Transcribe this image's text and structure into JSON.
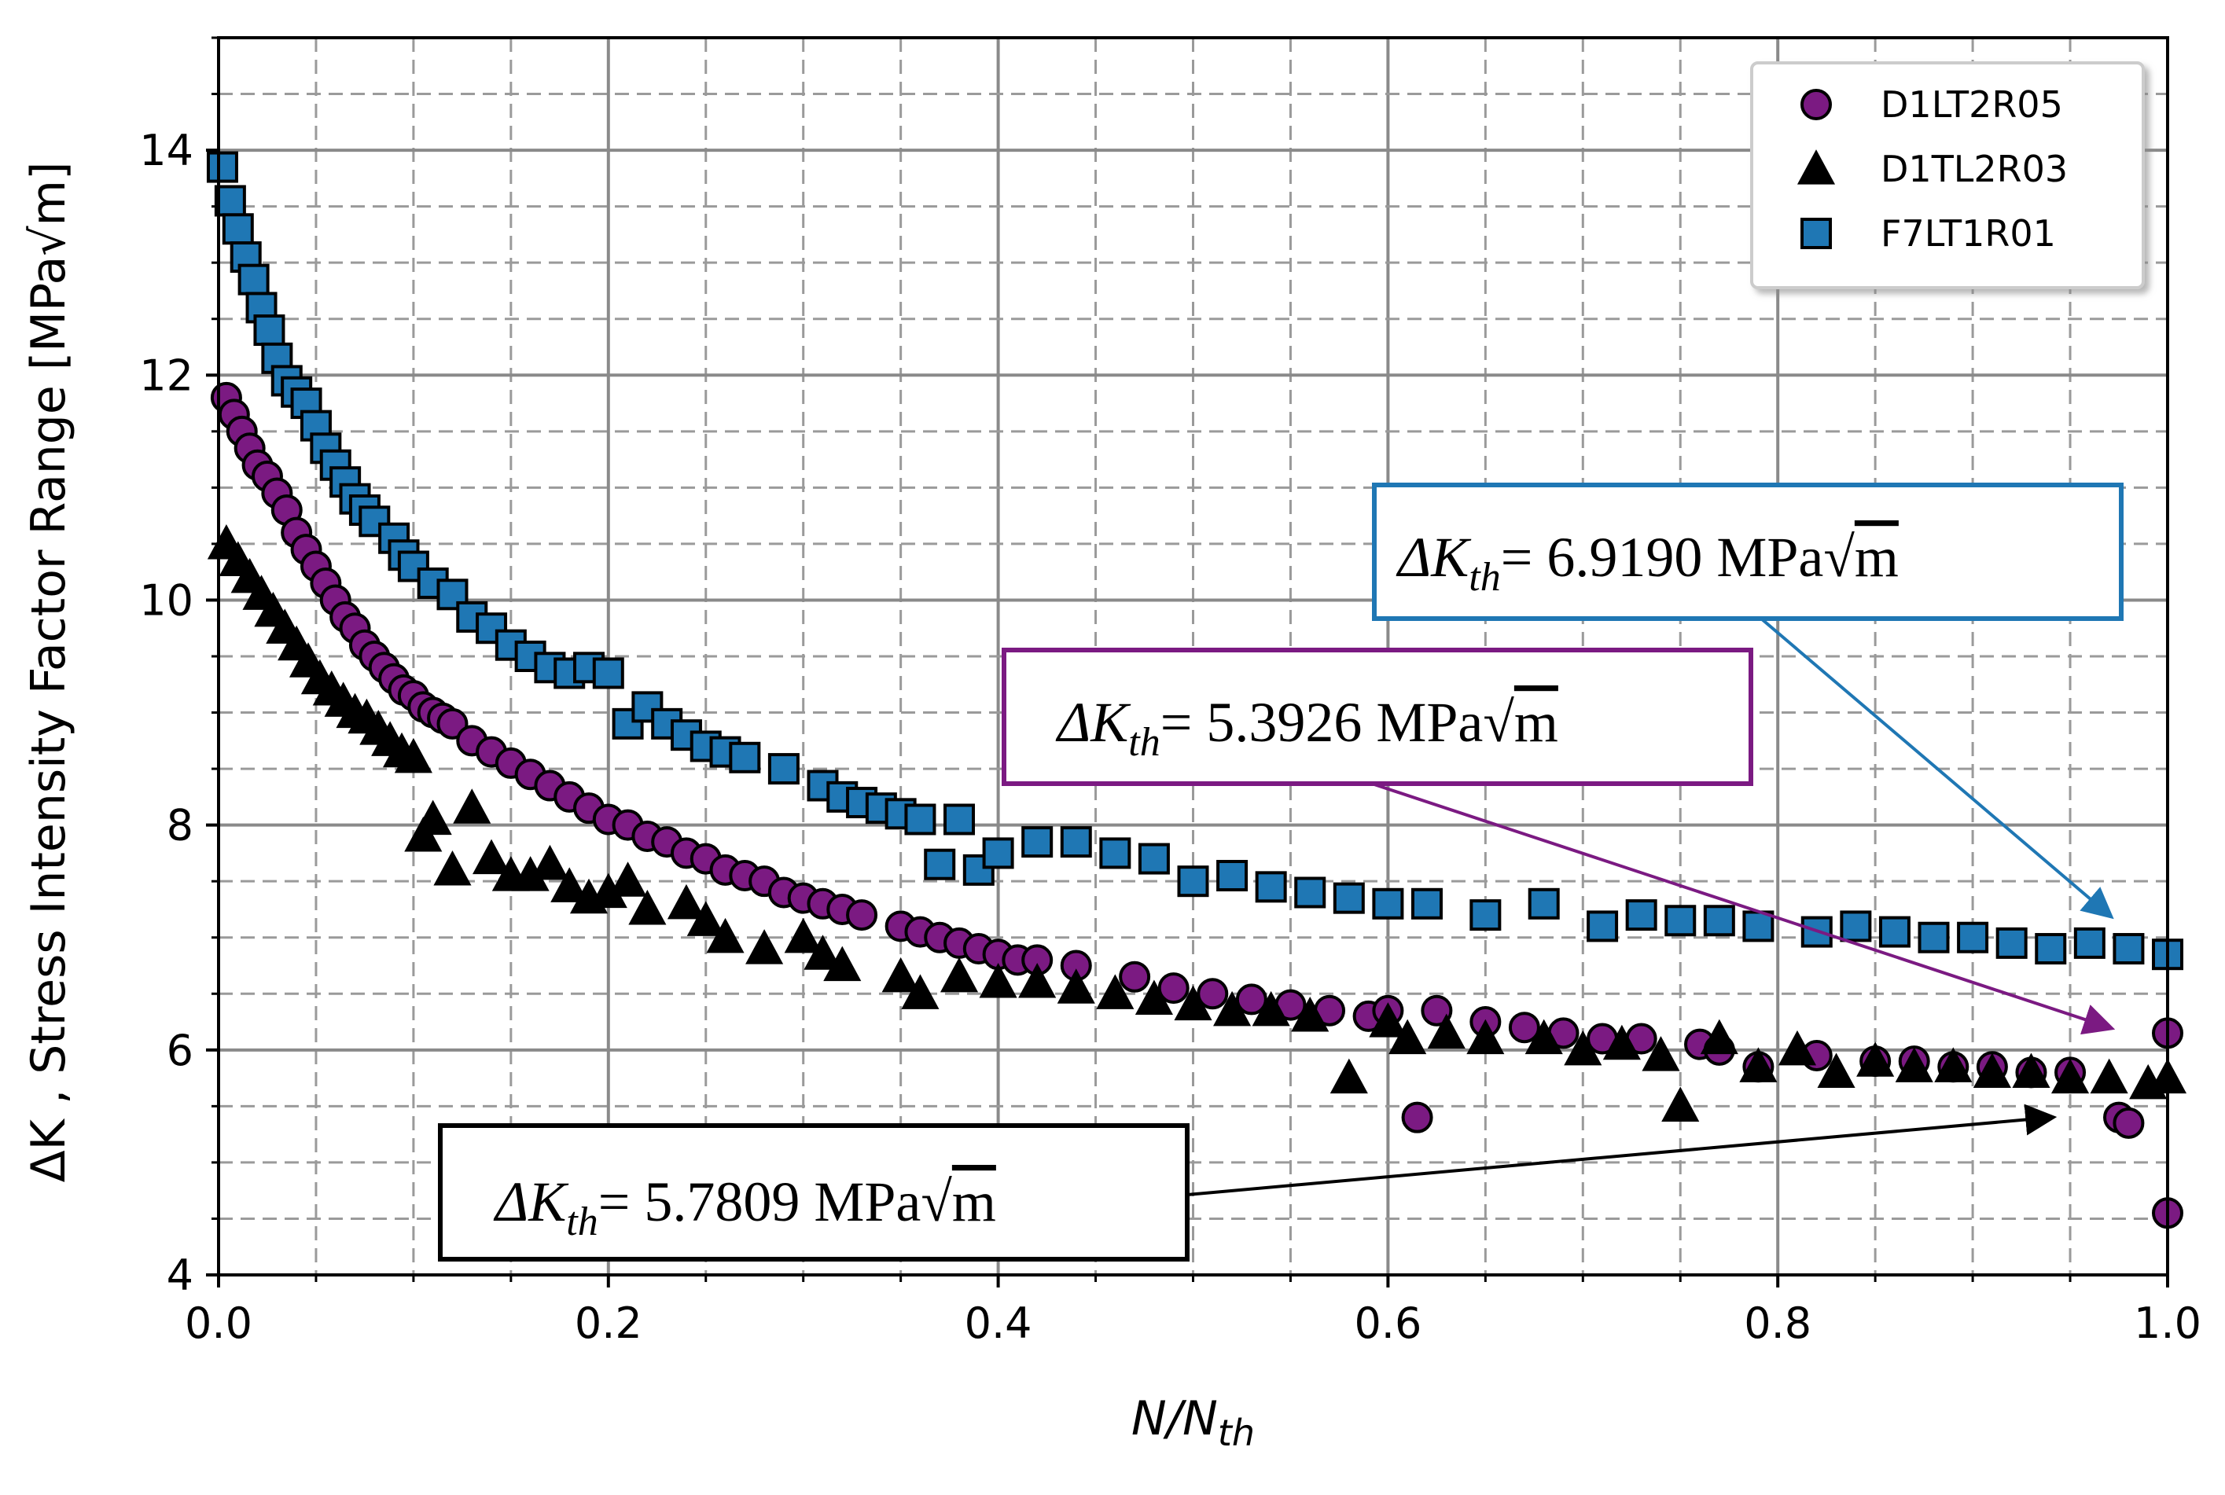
{
  "chart_data": {
    "type": "scatter",
    "title": "",
    "xlabel": "N/N",
    "xlabel_sub": "th",
    "ylabel": "ΔK , Stress Intensity Factor Range [MPa√m]",
    "xlim": [
      0.0,
      1.0
    ],
    "ylim": [
      4,
      15
    ],
    "x_ticks": [
      "0.0",
      "0.2",
      "0.4",
      "0.6",
      "0.8",
      "1.0"
    ],
    "y_ticks": [
      "4",
      "6",
      "8",
      "10",
      "12",
      "14"
    ],
    "grid": true,
    "legend_position": "top-right",
    "series": [
      {
        "name": "D1LT2R05",
        "marker": "circle",
        "color": "#7b1a82",
        "x": [
          0.004,
          0.008,
          0.012,
          0.016,
          0.02,
          0.025,
          0.03,
          0.035,
          0.04,
          0.045,
          0.05,
          0.055,
          0.06,
          0.065,
          0.07,
          0.075,
          0.08,
          0.085,
          0.09,
          0.095,
          0.1,
          0.105,
          0.11,
          0.115,
          0.12,
          0.13,
          0.14,
          0.15,
          0.16,
          0.17,
          0.18,
          0.19,
          0.2,
          0.21,
          0.22,
          0.23,
          0.24,
          0.25,
          0.26,
          0.27,
          0.28,
          0.29,
          0.3,
          0.31,
          0.32,
          0.33,
          0.35,
          0.36,
          0.37,
          0.38,
          0.39,
          0.4,
          0.41,
          0.42,
          0.44,
          0.47,
          0.49,
          0.51,
          0.53,
          0.55,
          0.57,
          0.59,
          0.6,
          0.615,
          0.625,
          0.65,
          0.67,
          0.69,
          0.71,
          0.73,
          0.76,
          0.77,
          0.79,
          0.82,
          0.85,
          0.87,
          0.89,
          0.91,
          0.93,
          0.95,
          0.975,
          0.98,
          1.0,
          1.0
        ],
        "y": [
          11.8,
          11.65,
          11.5,
          11.35,
          11.2,
          11.1,
          10.95,
          10.8,
          10.6,
          10.45,
          10.3,
          10.15,
          10.0,
          9.85,
          9.75,
          9.6,
          9.5,
          9.4,
          9.3,
          9.2,
          9.15,
          9.05,
          9.0,
          8.95,
          8.9,
          8.75,
          8.65,
          8.55,
          8.45,
          8.35,
          8.25,
          8.15,
          8.05,
          8.0,
          7.9,
          7.85,
          7.75,
          7.7,
          7.6,
          7.55,
          7.5,
          7.4,
          7.35,
          7.3,
          7.25,
          7.2,
          7.1,
          7.05,
          7.0,
          6.95,
          6.9,
          6.85,
          6.8,
          6.8,
          6.75,
          6.65,
          6.55,
          6.5,
          6.45,
          6.4,
          6.35,
          6.3,
          6.35,
          5.4,
          6.35,
          6.25,
          6.2,
          6.15,
          6.1,
          6.1,
          6.05,
          6.0,
          5.85,
          5.95,
          5.9,
          5.9,
          5.85,
          5.85,
          5.8,
          5.8,
          5.4,
          5.35,
          6.15,
          4.55
        ]
      },
      {
        "name": "D1TL2R03",
        "marker": "triangle",
        "color": "#000000",
        "x": [
          0.004,
          0.01,
          0.016,
          0.022,
          0.028,
          0.034,
          0.04,
          0.046,
          0.052,
          0.058,
          0.064,
          0.07,
          0.076,
          0.082,
          0.088,
          0.094,
          0.1,
          0.105,
          0.11,
          0.12,
          0.13,
          0.14,
          0.15,
          0.16,
          0.17,
          0.18,
          0.19,
          0.2,
          0.21,
          0.22,
          0.24,
          0.25,
          0.26,
          0.28,
          0.3,
          0.31,
          0.32,
          0.35,
          0.36,
          0.38,
          0.4,
          0.42,
          0.44,
          0.46,
          0.48,
          0.5,
          0.52,
          0.54,
          0.56,
          0.58,
          0.6,
          0.61,
          0.63,
          0.65,
          0.68,
          0.7,
          0.72,
          0.74,
          0.75,
          0.77,
          0.79,
          0.81,
          0.83,
          0.85,
          0.87,
          0.89,
          0.91,
          0.93,
          0.95,
          0.97,
          0.99,
          1.0
        ],
        "y": [
          10.5,
          10.35,
          10.2,
          10.05,
          9.9,
          9.75,
          9.6,
          9.45,
          9.3,
          9.2,
          9.1,
          9.0,
          8.95,
          8.85,
          8.75,
          8.65,
          8.6,
          7.9,
          8.05,
          7.6,
          8.15,
          7.7,
          7.55,
          7.55,
          7.65,
          7.45,
          7.35,
          7.4,
          7.5,
          7.25,
          7.3,
          7.15,
          7.0,
          6.9,
          7.0,
          6.85,
          6.75,
          6.65,
          6.5,
          6.65,
          6.6,
          6.6,
          6.55,
          6.5,
          6.45,
          6.4,
          6.35,
          6.35,
          6.3,
          5.75,
          6.25,
          6.1,
          6.15,
          6.1,
          6.1,
          6.0,
          6.05,
          5.95,
          5.5,
          6.1,
          5.85,
          6.0,
          5.8,
          5.9,
          5.85,
          5.85,
          5.8,
          5.8,
          5.75,
          5.75,
          5.7,
          5.75
        ]
      },
      {
        "name": "F7LT1R01",
        "marker": "square",
        "color": "#1f77b4",
        "x": [
          0.002,
          0.006,
          0.01,
          0.014,
          0.018,
          0.022,
          0.026,
          0.03,
          0.035,
          0.04,
          0.045,
          0.05,
          0.055,
          0.06,
          0.065,
          0.07,
          0.075,
          0.08,
          0.09,
          0.095,
          0.1,
          0.11,
          0.12,
          0.13,
          0.14,
          0.15,
          0.16,
          0.17,
          0.18,
          0.19,
          0.2,
          0.21,
          0.22,
          0.23,
          0.24,
          0.25,
          0.26,
          0.27,
          0.29,
          0.31,
          0.32,
          0.33,
          0.34,
          0.35,
          0.36,
          0.37,
          0.38,
          0.39,
          0.4,
          0.42,
          0.44,
          0.46,
          0.48,
          0.5,
          0.52,
          0.54,
          0.56,
          0.58,
          0.6,
          0.62,
          0.65,
          0.68,
          0.71,
          0.73,
          0.75,
          0.77,
          0.79,
          0.82,
          0.84,
          0.86,
          0.88,
          0.9,
          0.92,
          0.94,
          0.96,
          0.98,
          1.0
        ],
        "y": [
          13.85,
          13.55,
          13.3,
          13.05,
          12.85,
          12.6,
          12.4,
          12.15,
          11.95,
          11.85,
          11.75,
          11.55,
          11.35,
          11.2,
          11.05,
          10.9,
          10.8,
          10.7,
          10.55,
          10.4,
          10.3,
          10.15,
          10.05,
          9.85,
          9.75,
          9.6,
          9.5,
          9.4,
          9.35,
          9.4,
          9.35,
          8.9,
          9.05,
          8.9,
          8.8,
          8.7,
          8.65,
          8.6,
          8.5,
          8.35,
          8.25,
          8.2,
          8.15,
          8.1,
          8.05,
          7.65,
          8.05,
          7.6,
          7.75,
          7.85,
          7.85,
          7.75,
          7.7,
          7.5,
          7.55,
          7.45,
          7.4,
          7.35,
          7.3,
          7.3,
          7.2,
          7.3,
          7.1,
          7.2,
          7.15,
          7.15,
          7.1,
          7.05,
          7.1,
          7.05,
          7.0,
          7.0,
          6.95,
          6.9,
          6.95,
          6.9,
          6.85
        ]
      }
    ],
    "annotations": [
      {
        "prefix": "ΔK",
        "sub": "th",
        "value": "= 6.9190 MPa",
        "unit": "m",
        "color": "#1f77b4",
        "target_x": 0.97,
        "target_y": 7.2
      },
      {
        "prefix": "ΔK",
        "sub": "th",
        "value": "= 5.3926 MPa",
        "unit": "m",
        "color": "#7b1a82",
        "target_x": 0.97,
        "target_y": 6.2
      },
      {
        "prefix": "ΔK",
        "sub": "th",
        "value": "= 5.7809 MPa",
        "unit": "m",
        "color": "#000000",
        "target_x": 0.94,
        "target_y": 5.4
      }
    ]
  }
}
